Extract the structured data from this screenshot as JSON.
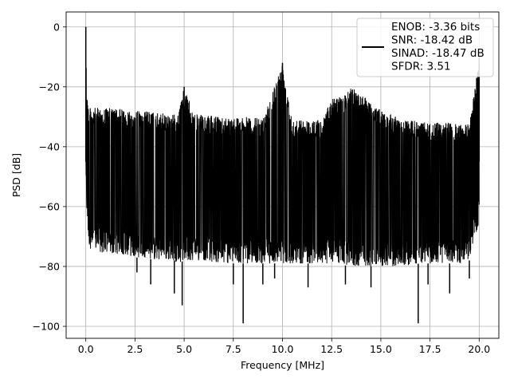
{
  "chart_data": {
    "type": "line",
    "title": "",
    "xlabel": "Frequency [MHz]",
    "ylabel": "PSD [dB]",
    "xlim": [
      -1.0,
      21.0
    ],
    "ylim": [
      -104,
      5
    ],
    "x_ticks": [
      0.0,
      2.5,
      5.0,
      7.5,
      10.0,
      12.5,
      15.0,
      17.5,
      20.0
    ],
    "x_tick_labels": [
      "0.0",
      "2.5",
      "5.0",
      "7.5",
      "10.0",
      "12.5",
      "15.0",
      "17.5",
      "20.0"
    ],
    "y_ticks": [
      0,
      -20,
      -40,
      -60,
      -80,
      -100
    ],
    "y_tick_labels": [
      "0",
      "−20",
      "−40",
      "−60",
      "−80",
      "−100"
    ],
    "grid": true,
    "legend_position": "top-right",
    "series": [
      {
        "color": "#000000",
        "x": [
          0.0,
          0.05,
          0.1,
          0.15,
          0.2,
          1.0,
          2.0,
          2.5,
          3.0,
          3.5,
          4.0,
          4.5,
          4.7,
          5.0,
          5.5,
          6.0,
          7.0,
          7.5,
          8.0,
          9.0,
          10.0,
          10.5,
          11.0,
          12.0,
          12.5,
          13.0,
          13.3,
          13.5,
          14.0,
          14.5,
          15.0,
          15.5,
          16.0,
          17.0,
          17.5,
          18.0,
          18.5,
          19.0,
          19.5,
          20.0
        ],
        "peak": [
          0,
          -18,
          -25,
          -26,
          -27,
          -27,
          -27.5,
          -28,
          -28,
          -28.5,
          -29,
          -29,
          -29.5,
          -20,
          -29,
          -29.5,
          -30,
          -30,
          -30,
          -30.5,
          -12,
          -30.5,
          -31,
          -31,
          -24,
          -23,
          -22,
          -20,
          -22,
          -25,
          -28,
          -29,
          -31,
          -31.5,
          -32,
          -32,
          -32,
          -32.5,
          -32.5,
          -10
        ],
        "low": [
          -52,
          -62,
          -68,
          -72,
          -74,
          -76,
          -76,
          -77,
          -77,
          -78,
          -78,
          -78,
          -79,
          -78,
          -78,
          -78,
          -79,
          -79,
          -79,
          -79,
          -79,
          -79,
          -79,
          -79,
          -79,
          -79,
          -80,
          -80,
          -80,
          -80,
          -80,
          -80,
          -80,
          -79,
          -79,
          -79,
          -79,
          -79,
          -78,
          -65
        ],
        "dip_x": [
          2.6,
          3.3,
          4.5,
          4.9,
          7.5,
          8.0,
          9.0,
          9.6,
          11.3,
          13.2,
          14.5,
          16.9,
          17.4,
          18.5,
          19.5
        ],
        "dip_y": [
          -82,
          -86,
          -89,
          -93,
          -86,
          -99,
          -86,
          -84,
          -87,
          -86,
          -87,
          -99,
          -86,
          -89,
          -84
        ]
      }
    ],
    "legend": {
      "lines": [
        "ENOB: -3.36 bits",
        "SNR: -18.42 dB",
        "SINAD: -18.47 dB",
        "SFDR: 3.51"
      ]
    }
  }
}
